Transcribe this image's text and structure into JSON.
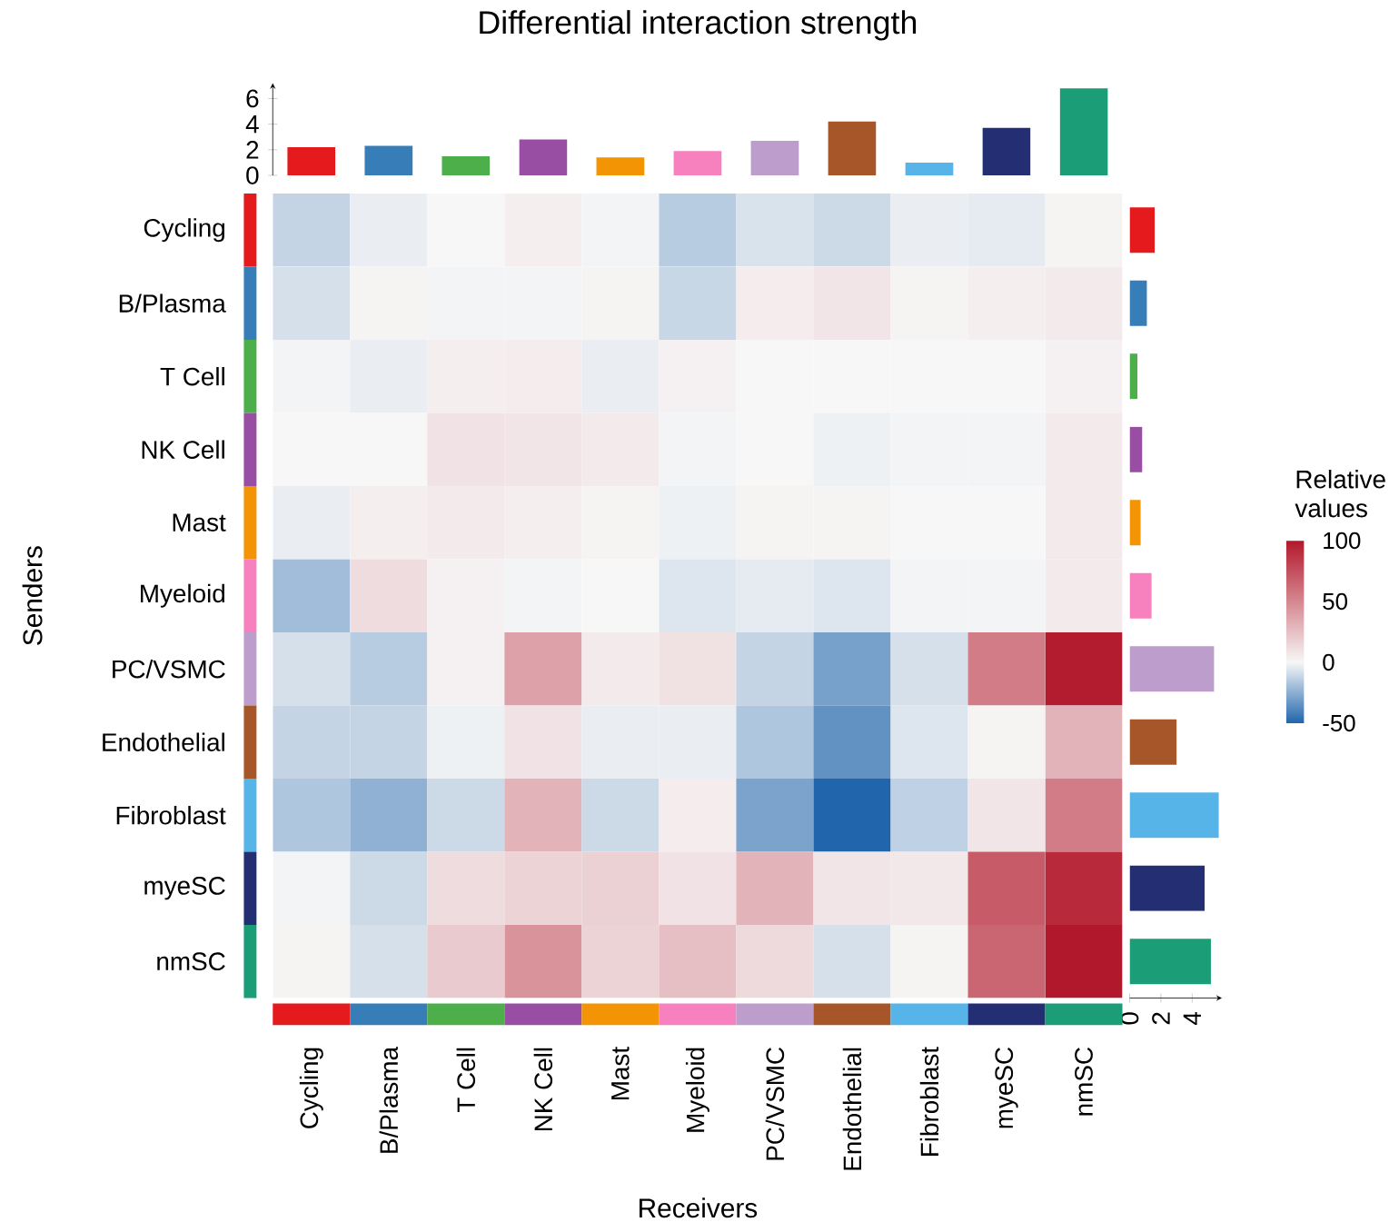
{
  "chart_data": [
    {
      "type": "heatmap",
      "xlabel": "Receivers",
      "ylabel": "Senders",
      "clabel": "Relative values",
      "categories": [
        "Cycling",
        "B/Plasma",
        "T Cell",
        "NK Cell",
        "Mast",
        "Myeloid",
        "PC/VSMC",
        "Endothelial",
        "Fibroblast",
        "myeSC",
        "nmSC"
      ],
      "y_categories": [
        "Cycling",
        "B/Plasma",
        "T Cell",
        "NK Cell",
        "Mast",
        "Myeloid",
        "PC/VSMC",
        "Endothelial",
        "Fibroblast",
        "myeSC",
        "nmSC"
      ],
      "cells": [
        [
          -12,
          -3,
          0,
          4,
          -1,
          -15,
          -7,
          -10,
          -3,
          -4,
          2
        ],
        [
          -8,
          2,
          -1,
          -1,
          2,
          -11,
          5,
          8,
          2,
          4,
          6
        ],
        [
          -1,
          -3,
          4,
          5,
          -3,
          3,
          0,
          0,
          0,
          0,
          3
        ],
        [
          0,
          0,
          9,
          8,
          6,
          -1,
          0,
          -2,
          -1,
          -1,
          6
        ],
        [
          -3,
          4,
          6,
          4,
          2,
          -2,
          2,
          2,
          0,
          0,
          6
        ],
        [
          -20,
          12,
          3,
          -1,
          0,
          -6,
          -4,
          -6,
          -1,
          -1,
          6
        ],
        [
          -8,
          -15,
          3,
          38,
          6,
          10,
          -12,
          -30,
          -8,
          55,
          98
        ],
        [
          -12,
          -12,
          -2,
          9,
          -3,
          -3,
          -17,
          -35,
          -6,
          2,
          30
        ],
        [
          -17,
          -24,
          -10,
          30,
          -10,
          5,
          -29,
          -50,
          -13,
          8,
          55
        ],
        [
          -1,
          -10,
          12,
          16,
          17,
          9,
          30,
          8,
          7,
          70,
          92
        ],
        [
          2,
          -8,
          20,
          45,
          16,
          25,
          13,
          -8,
          2,
          65,
          100
        ]
      ],
      "clim": [
        -50,
        100
      ],
      "cticks": [
        -50,
        0,
        50,
        100
      ]
    },
    {
      "type": "bar",
      "title": "Differential interaction strength",
      "categories": [
        null,
        null,
        null,
        null,
        null,
        null,
        null,
        null,
        null,
        null,
        null
      ],
      "values": [
        2.2,
        2.3,
        1.5,
        2.8,
        1.4,
        1.9,
        2.7,
        4.2,
        1.0,
        3.7,
        6.8
      ],
      "colors": [
        "#e41a1c",
        "#377eb8",
        "#4daf4a",
        "#984ea3",
        "#f29403",
        "#f781bf",
        "#bc9dcc",
        "#a65628",
        "#56b4e9",
        "#232e73",
        "#1b9e77"
      ],
      "ylim": [
        0,
        7.2
      ],
      "yticks": [
        0,
        2,
        4,
        6
      ],
      "tick_labels": "y"
    },
    {
      "type": "bar",
      "orientation": "horizontal",
      "categories": [
        null,
        null,
        null,
        null,
        null,
        null,
        null,
        null,
        null,
        null,
        null
      ],
      "values": [
        1.6,
        1.1,
        0.5,
        0.8,
        0.7,
        1.4,
        5.4,
        3.0,
        5.7,
        4.8,
        5.2
      ],
      "colors": [
        "#e41a1c",
        "#377eb8",
        "#4daf4a",
        "#984ea3",
        "#f29403",
        "#f781bf",
        "#bc9dcc",
        "#a65628",
        "#56b4e9",
        "#232e73",
        "#1b9e77"
      ],
      "xlim": [
        0,
        5.9
      ],
      "xticks": [
        0,
        2,
        4
      ],
      "tick_labels": "x"
    }
  ]
}
